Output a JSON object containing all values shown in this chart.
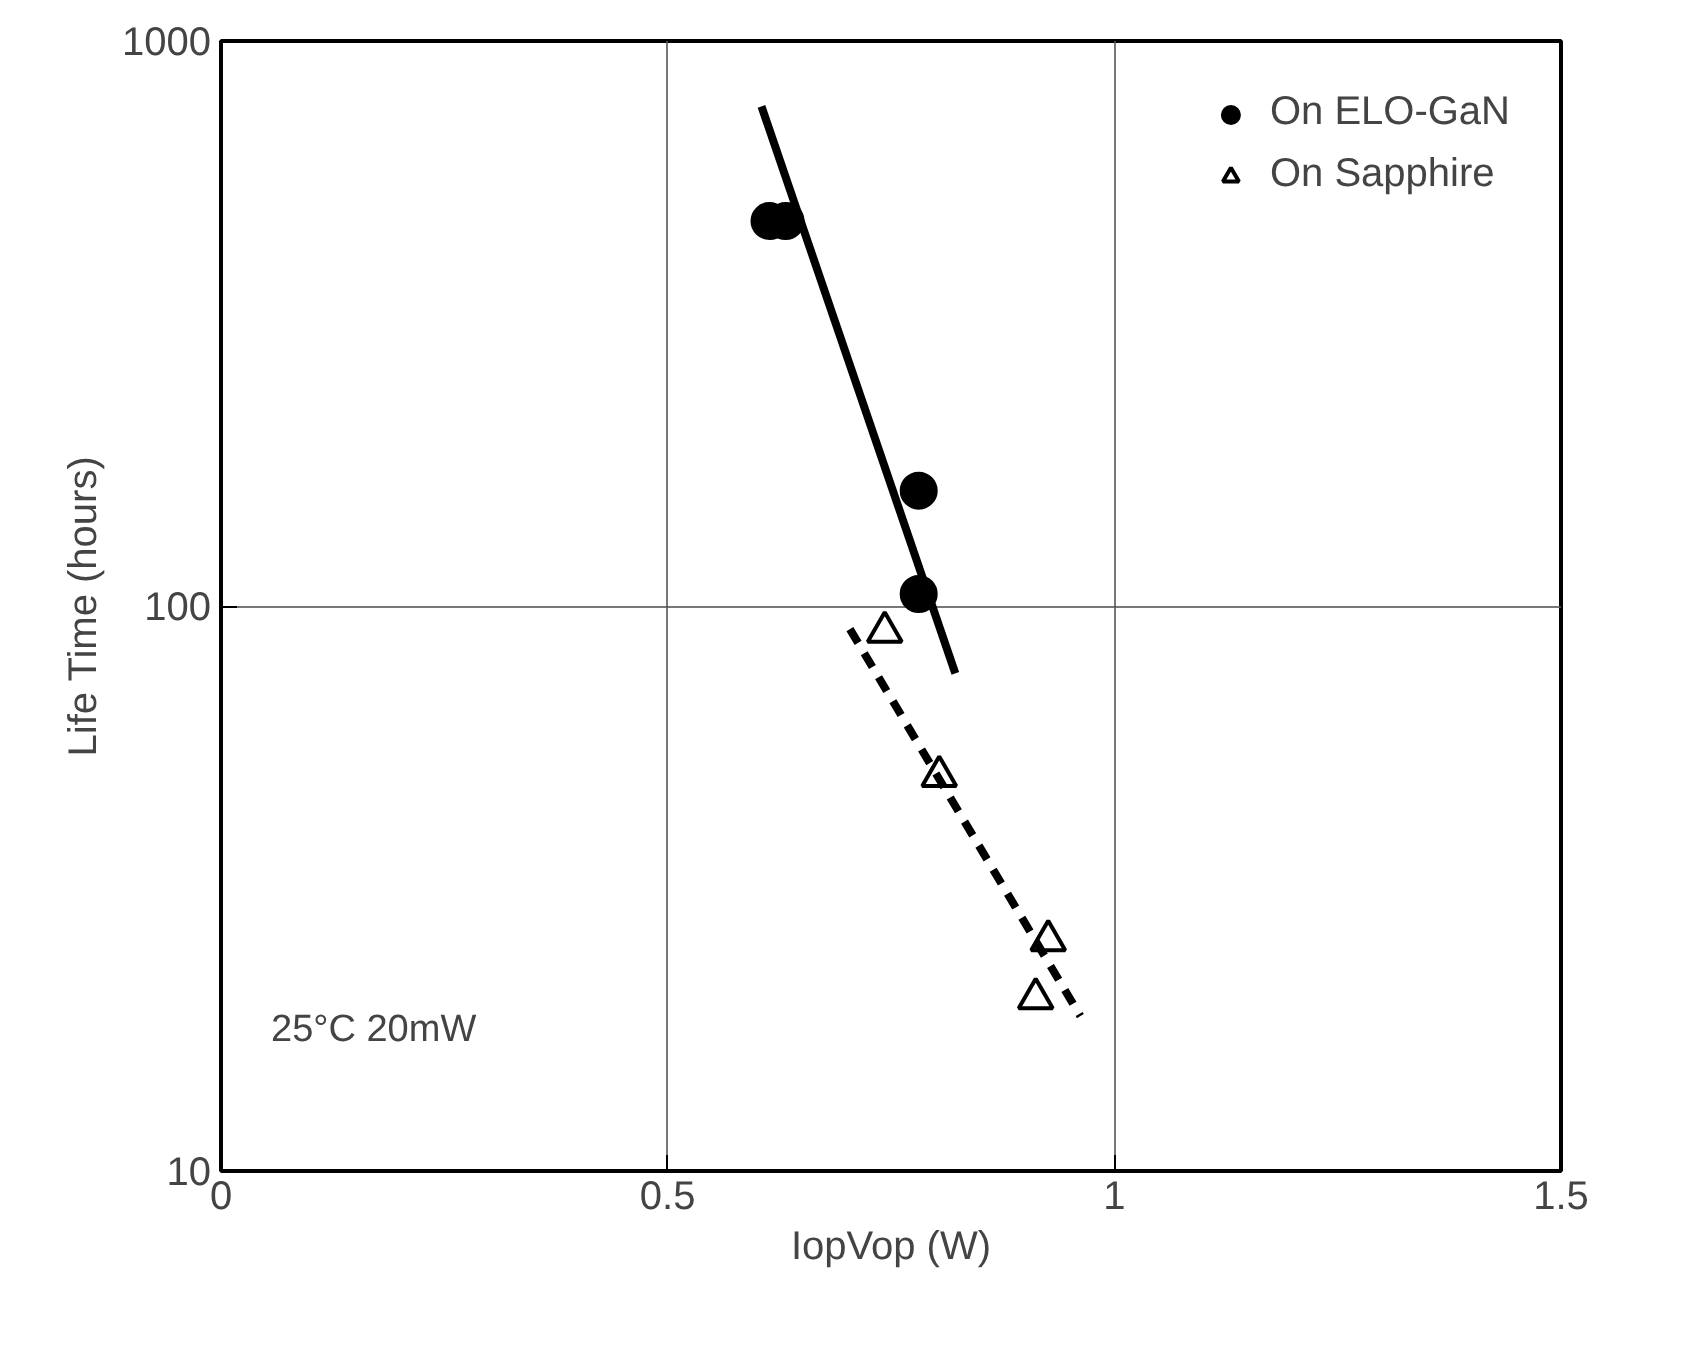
{
  "chart_data": {
    "type": "scatter",
    "xlabel": "IopVop (W)",
    "ylabel": "Life Time (hours)",
    "xlim": [
      0,
      1.5
    ],
    "xticks": [
      0,
      0.5,
      1,
      1.5
    ],
    "ylim": [
      10,
      1000
    ],
    "yticks": [
      10,
      100,
      1000
    ],
    "log": "y",
    "grid": true,
    "legend": "top right",
    "series": [
      {
        "name": "On ELO-GaN",
        "marker": "circle",
        "color": "#000000",
        "x": [
          0.614,
          0.632,
          0.781,
          0.781
        ],
        "values": [
          480,
          480,
          160,
          105
        ]
      },
      {
        "name": "On Sapphire",
        "marker": "triangle",
        "color": "#000000",
        "x": [
          0.743,
          0.804,
          0.926,
          0.912
        ],
        "values": [
          90,
          50,
          25.6,
          20.2
        ]
      },
      {
        "type": "line",
        "line_style": "solid",
        "color": "#000000",
        "x": [
          0.605,
          0.822
        ],
        "values": [
          766,
          76
        ]
      },
      {
        "type": "line",
        "line_style": "dashed",
        "color": "#000000",
        "x": [
          0.704,
          0.962
        ],
        "values": [
          91,
          18.8
        ]
      }
    ],
    "annotations": [
      "25°C  20mW"
    ]
  }
}
